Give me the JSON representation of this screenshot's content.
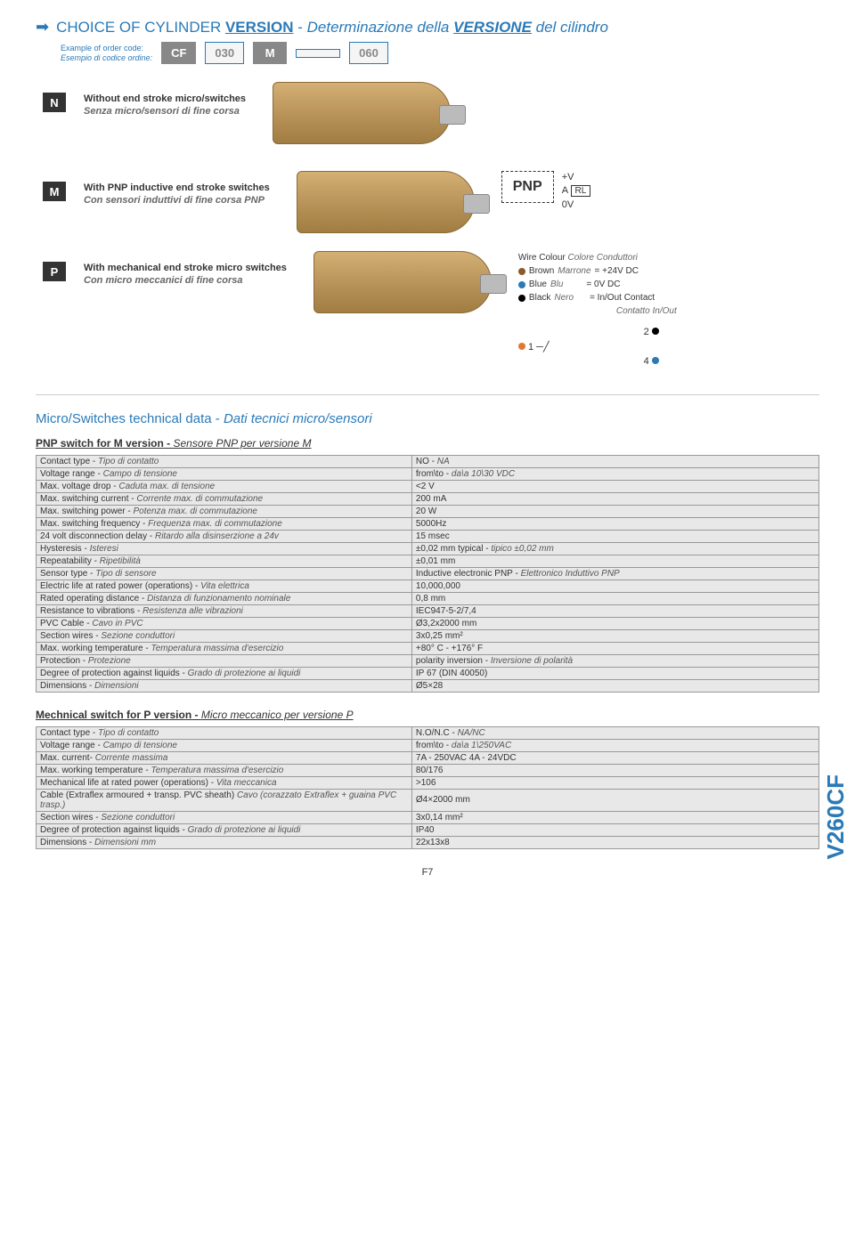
{
  "header": {
    "title_en": "CHOICE OF CYLINDER",
    "title_version": "VERSION",
    "title_sep": " - ",
    "title_it": "Determinazione della",
    "title_it_version": "VERSIONE",
    "title_it_end": " del cilindro"
  },
  "example": {
    "label_en": "Example of order code:",
    "label_it": "Esempio di codice ordine:",
    "c1": "CF",
    "c2": "030",
    "c3": "M",
    "c4": "",
    "c5": "060"
  },
  "versions": {
    "n": {
      "tag": "N",
      "en": "Without end stroke micro/switches",
      "it": "Senza micro/sensori di fine corsa"
    },
    "m": {
      "tag": "M",
      "en": "With PNP inductive end stroke switches",
      "it": "Con sensori induttivi di fine corsa PNP"
    },
    "p": {
      "tag": "P",
      "en": "With mechanical end stroke micro switches",
      "it": "Con micro meccanici di fine corsa"
    }
  },
  "pnp": {
    "label": "PNP",
    "v": "+V",
    "a": "A",
    "zero": "0V",
    "rl": "RL"
  },
  "wire": {
    "title_en": "Wire Colour",
    "title_it": "Colore Conduttori",
    "brown_en": "Brown",
    "brown_it": "Marrone",
    "brown_val": "= +24V DC",
    "blue_en": "Blue",
    "blue_it": "Blu",
    "blue_val": "= 0V DC",
    "black_en": "Black",
    "black_it": "Nero",
    "black_val": "= In/Out Contact",
    "black_it2": "Contatto In/Out",
    "n1": "1",
    "n2": "2",
    "n4": "4"
  },
  "tech": {
    "title_en": "Micro/Switches technical data",
    "title_sep": " - ",
    "title_it": "Dati tecnici micro/sensori"
  },
  "pnp_table": {
    "heading_en": "PNP switch for M version",
    "heading_sep": " - ",
    "heading_it": "Sensore PNP per versione M",
    "rows": [
      [
        "Contact type - ",
        "Tipo di contatto",
        "NO - ",
        "NA"
      ],
      [
        "Voltage range - ",
        "Campo di tensione",
        "from\\to - ",
        "da\\a 10\\30 VDC"
      ],
      [
        "Max. voltage drop - ",
        "Caduta max. di tensione",
        "<2 V",
        ""
      ],
      [
        "Max. switching current  - ",
        "Corrente max. di commutazione",
        "200 mA",
        ""
      ],
      [
        "Max. switching power - ",
        "Potenza max. di commutazione",
        "20 W",
        ""
      ],
      [
        "Max. switching frequency - ",
        "Frequenza max. di commutazione",
        "5000Hz",
        ""
      ],
      [
        "24 volt disconnection delay - ",
        "Ritardo alla disinserzione a 24v",
        "15 msec",
        ""
      ],
      [
        "Hysteresis - ",
        "Isteresi",
        "±0,02 mm typical - ",
        "tipico ±0,02 mm"
      ],
      [
        "Repeatability - ",
        "Ripetibilità",
        "±0,01 mm",
        ""
      ],
      [
        "Sensor type - ",
        "Tipo di sensore",
        "Inductive electronic PNP - ",
        "Elettronico Induttivo PNP"
      ],
      [
        "Electric life at rated power (operations) - ",
        "Vita elettrica",
        "10,000,000",
        ""
      ],
      [
        "Rated operating distance - ",
        "Distanza di funzionamento nominale",
        "0,8 mm",
        ""
      ],
      [
        "Resistance to vibrations - ",
        "Resistenza alle vibrazioni",
        "IEC947-5-2/7,4",
        ""
      ],
      [
        "PVC Cable  - ",
        "Cavo in PVC",
        "Ø3,2x2000 mm",
        ""
      ],
      [
        "Section wires - ",
        "Sezione conduttori",
        "3x0,25 mm²",
        ""
      ],
      [
        "Max. working temperature - ",
        "Temperatura massima d'esercizio",
        "+80° C - +176° F",
        ""
      ],
      [
        "Protection - ",
        "Protezione",
        "polarity inversion - ",
        "Inversione di polarità"
      ],
      [
        "Degree of protection against liquids - ",
        "Grado di protezione ai liquidi",
        "IP 67 (DIN 40050)",
        ""
      ],
      [
        "Dimensions - ",
        "Dimensioni",
        "Ø5×28",
        ""
      ]
    ]
  },
  "mech_table": {
    "heading_en": "Mechnical switch for P version",
    "heading_sep": " - ",
    "heading_it": "Micro meccanico per versione P",
    "rows": [
      [
        "Contact type - ",
        "Tipo di contatto",
        "N.O/N.C - ",
        "NA/NC"
      ],
      [
        "Voltage range - ",
        "Campo di tensione",
        "from\\to - ",
        "da\\a 1\\250VAC"
      ],
      [
        "Max. current- ",
        "Corrente massima",
        "7A - 250VAC      4A - 24VDC",
        ""
      ],
      [
        "Max. working temperature - ",
        "Temperatura massima d'esercizio",
        "80/176",
        ""
      ],
      [
        "Mechanical life at rated power (operations) - ",
        "Vita meccanica",
        ">106",
        ""
      ],
      [
        "Cable (Extraflex armoured + transp. PVC sheath)\n",
        "Cavo (corazzato Extraflex + guaina PVC trasp.)",
        "Ø4×2000 mm",
        ""
      ],
      [
        "Section wires - ",
        "Sezione conduttori",
        "3x0,14 mm²",
        ""
      ],
      [
        "Degree of protection against liquids - ",
        "Grado di protezione ai liquidi",
        "IP40",
        ""
      ],
      [
        "Dimensions - ",
        "Dimensioni mm",
        "22x13x8",
        ""
      ]
    ]
  },
  "side": "V260CF",
  "page": "F7"
}
